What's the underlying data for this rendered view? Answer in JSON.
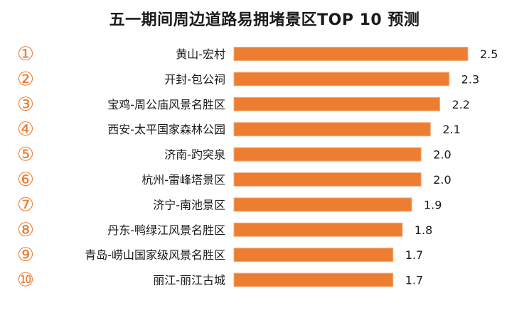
{
  "chart_data": {
    "type": "bar",
    "orientation": "horizontal",
    "title": "五一期间周边道路易拥堵景区TOP 10 预测",
    "ranks": [
      "①",
      "②",
      "③",
      "④",
      "⑤",
      "⑥",
      "⑦",
      "⑧",
      "⑨",
      "⑩"
    ],
    "categories": [
      "黄山-宏村",
      "开封-包公祠",
      "宝鸡-周公庙风景名胜区",
      "西安-太平国家森林公园",
      "济南-趵突泉",
      "杭州-雷峰塔景区",
      "济宁-南池景区",
      "丹东-鸭绿江风景名胜区",
      "青岛-崂山国家级风景名胜区",
      "丽江-丽江古城"
    ],
    "values": [
      2.5,
      2.3,
      2.2,
      2.1,
      2.0,
      2.0,
      1.9,
      1.8,
      1.7,
      1.7
    ],
    "value_labels": [
      "2.5",
      "2.3",
      "2.2",
      "2.1",
      "2.0",
      "2.0",
      "1.9",
      "1.8",
      "1.7",
      "1.7"
    ],
    "xlim": [
      0,
      2.5
    ],
    "grid": false,
    "legend": "none",
    "colors": {
      "bar": "#ED7D31",
      "bar_edge": "#F4B183",
      "rank": "#ED7D31",
      "text": "#1a1a1a"
    }
  }
}
